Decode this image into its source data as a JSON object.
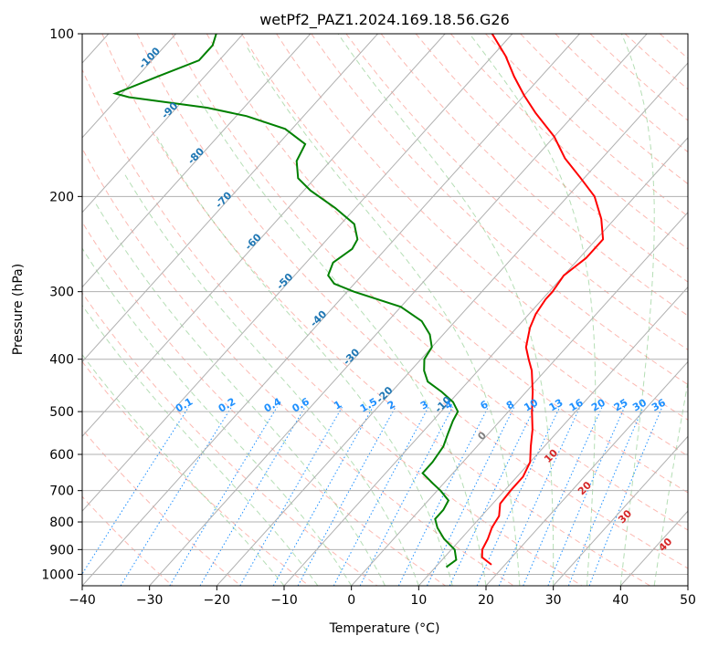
{
  "chart_data": {
    "type": "line",
    "title": "wetPf2_PAZ1.2024.169.18.56.G26",
    "xlabel": "Temperature (°C)",
    "ylabel": "Pressure (hPa)",
    "xlim": [
      -40,
      50
    ],
    "ylim_pressure": [
      1050,
      100
    ],
    "y_scale": "log",
    "skew": true,
    "x_ticks": [
      -40,
      -30,
      -20,
      -10,
      0,
      10,
      20,
      30,
      40,
      50
    ],
    "y_ticks": [
      100,
      200,
      300,
      400,
      500,
      600,
      700,
      800,
      900,
      1000
    ],
    "grid": true,
    "colors": {
      "temperature": "#ff0000",
      "dewpoint": "#008000",
      "isotherm_label": "#1f77b4",
      "mixing_ratio": "#1e90ff",
      "moist_adiabat_label": "#d62728",
      "dry_adiabat": "#fa8072",
      "moist_adiabat": "#2ca02c",
      "grid": "#b0b0b0"
    },
    "series": [
      {
        "key": "temperature",
        "pressure": [
          960,
          930,
          900,
          860,
          820,
          780,
          740,
          700,
          660,
          620,
          580,
          540,
          500,
          460,
          420,
          400,
          380,
          350,
          330,
          310,
          300,
          280,
          260,
          240,
          220,
          200,
          185,
          170,
          155,
          140,
          130,
          120,
          110,
          100
        ],
        "values": [
          18.0,
          15.6,
          14.6,
          14.0,
          13.1,
          12.6,
          11.1,
          10.9,
          10.9,
          10.0,
          8.0,
          6.0,
          3.5,
          1.0,
          -2.0,
          -4.0,
          -6.0,
          -8.0,
          -9.0,
          -9.5,
          -9.5,
          -10.0,
          -9.0,
          -9.0,
          -12.0,
          -16.0,
          -20.5,
          -25.5,
          -30.0,
          -36.0,
          -40.0,
          -44.0,
          -48.0,
          -53.0
        ]
      },
      {
        "key": "dewpoint",
        "pressure": [
          970,
          940,
          900,
          860,
          820,
          790,
          760,
          730,
          700,
          680,
          650,
          620,
          580,
          550,
          520,
          500,
          480,
          460,
          440,
          420,
          400,
          380,
          360,
          340,
          320,
          300,
          290,
          280,
          265,
          250,
          240,
          225,
          210,
          195,
          185,
          172,
          160,
          150,
          142,
          137,
          131,
          129,
          120,
          112,
          105,
          100
        ],
        "values": [
          11.6,
          12.1,
          10.5,
          7.5,
          5.0,
          3.5,
          3.5,
          3.0,
          0.5,
          -1.5,
          -4.5,
          -4.5,
          -5.0,
          -6.0,
          -7.0,
          -7.5,
          -9.5,
          -12.5,
          -16.0,
          -18.0,
          -19.5,
          -20.0,
          -22.0,
          -25.0,
          -30.0,
          -39.0,
          -43.0,
          -45.0,
          -46.0,
          -45.0,
          -45.5,
          -48.0,
          -53.0,
          -59.0,
          -62.5,
          -65.0,
          -66.0,
          -71.0,
          -78.5,
          -85.5,
          -98.5,
          -101.0,
          -97.0,
          -93.0,
          -93.0,
          -94.0
        ]
      }
    ],
    "isotherm_labels": [
      "-100",
      "-90",
      "-80",
      "-70",
      "-60",
      "-50",
      "-40",
      "-30",
      "-20",
      "-10",
      "0"
    ],
    "mixing_ratio_labels": [
      "0.1",
      "0.2",
      "0.4",
      "0.6",
      "1",
      "1.5",
      "2",
      "3",
      "4",
      "6",
      "8",
      "10",
      "13",
      "16",
      "20",
      "25",
      "30",
      "36"
    ],
    "mixing_ratio_values": [
      0.1,
      0.2,
      0.4,
      0.6,
      1,
      1.5,
      2,
      3,
      4,
      6,
      8,
      10,
      13,
      16,
      20,
      25,
      30,
      36
    ],
    "moist_adiabat_labels": [
      "10",
      "20",
      "30",
      "40"
    ]
  }
}
